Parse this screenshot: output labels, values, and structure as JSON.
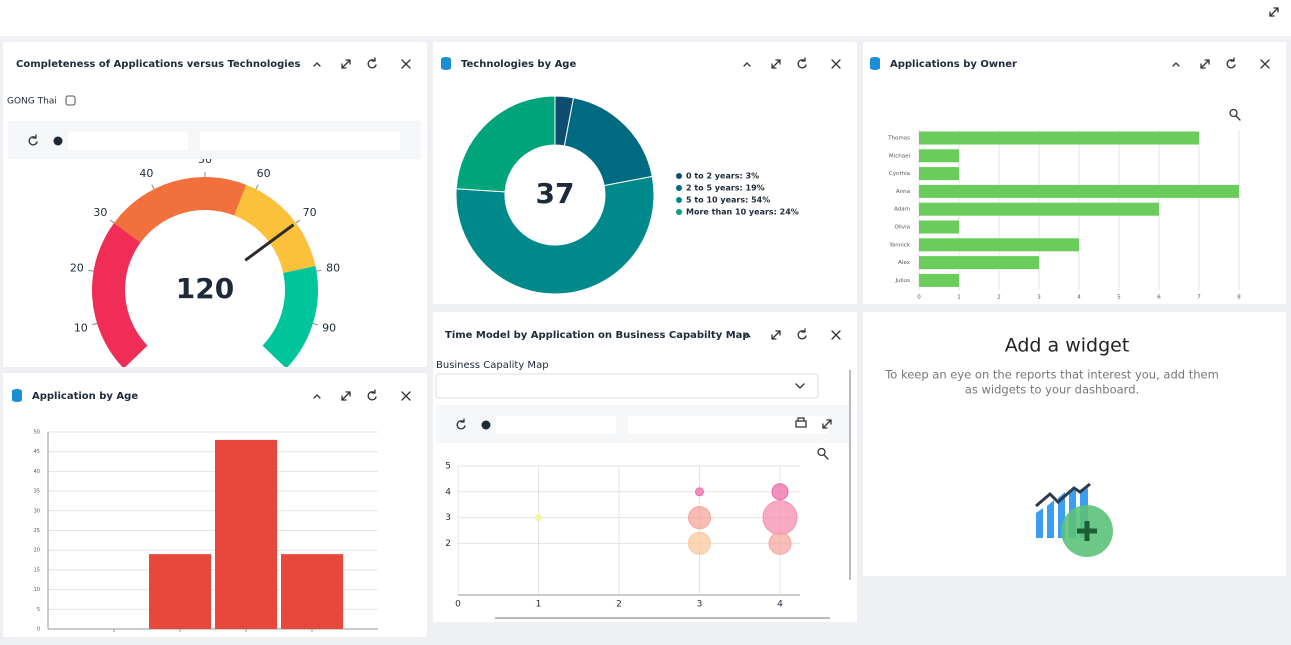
{
  "gauge_filter": "GONG Thai",
  "map_selector": "Business Capality Map",
  "add_widget": {
    "title": "Add a widget",
    "lines": [
      "To keep an eye on the reports that interest you, add them",
      "as widgets to your dashboard."
    ]
  },
  "chart_data": [
    {
      "type": "gauge",
      "title": "Completeness of Applications versus Technologies",
      "value": 120,
      "needle": 70,
      "ylim": [
        0,
        100
      ],
      "yticks": [
        10,
        20,
        30,
        40,
        50,
        60,
        70,
        80,
        90
      ],
      "bands": [
        {
          "from": 0,
          "to": 30,
          "color": "#ef2d56"
        },
        {
          "from": 30,
          "to": 58,
          "color": "#f2703c"
        },
        {
          "from": 58,
          "to": 79,
          "color": "#fcc13b"
        },
        {
          "from": 79,
          "to": 100,
          "color": "#00c49a"
        }
      ]
    },
    {
      "type": "donut",
      "title": "Technologies by Age",
      "center_label": 37,
      "categories": [
        "0 to 2 years: 3%",
        "2 to 5 years: 19%",
        "5 to 10 years: 54%",
        "More than 10 years: 24%"
      ],
      "values": [
        3,
        19,
        54,
        24
      ],
      "colors": [
        "#0e4d6e",
        "#006b80",
        "#00898a",
        "#00a47a"
      ]
    },
    {
      "type": "hbar",
      "title": "Applications by Owner",
      "categories": [
        "Thomas",
        "Michael",
        "Cynthia",
        "Anna",
        "Adam",
        "Olivia",
        "Yannick",
        "Alex",
        "Julius"
      ],
      "values": [
        7,
        1,
        1,
        8,
        6,
        1,
        4,
        3,
        1
      ],
      "color": "#6acc5a",
      "xlim": [
        0,
        8
      ],
      "xticks": [
        0,
        1,
        2,
        3,
        4,
        5,
        6,
        7,
        8
      ],
      "grid": true
    },
    {
      "type": "bar",
      "title": "Application by Age",
      "categories": [
        null,
        null,
        null,
        null
      ],
      "values": [
        0,
        19,
        48,
        19
      ],
      "color": "#e8473c",
      "ylim": [
        0,
        50
      ],
      "yticks": [
        0,
        5,
        10,
        15,
        20,
        25,
        30,
        35,
        40,
        45,
        50
      ],
      "grid": true
    },
    {
      "type": "bubble",
      "title": "Time Model by Application on Business Capabilty Map",
      "x": [
        1,
        3,
        3,
        3,
        4,
        4,
        4
      ],
      "values": [
        3,
        4,
        3,
        2,
        4,
        3,
        2
      ],
      "sizes": [
        3,
        4,
        11,
        11,
        8,
        17,
        11
      ],
      "colors": [
        "#f3f59a",
        "#f06ca8",
        "#f7a59c",
        "#fbc99d",
        "#f06ca8",
        "#f78fb3",
        "#f5a8a0"
      ],
      "xlim": [
        0,
        4
      ],
      "xticks": [
        0,
        1,
        2,
        3,
        4
      ],
      "ylim": [
        0,
        5
      ],
      "yticks": [
        2,
        3,
        4,
        5
      ],
      "grid": true
    }
  ]
}
